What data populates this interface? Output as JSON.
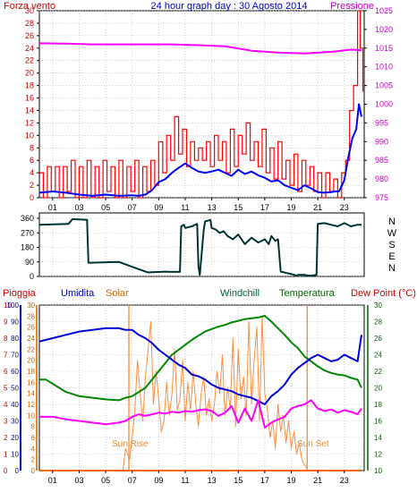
{
  "chart_data": [
    {
      "type": "line",
      "title": "24 hour graph day : 30 Agosto 2014",
      "left_axis_label": "Forza vento",
      "right_axis_label": "Pressione",
      "left_ylim": [
        0,
        30
      ],
      "left_ticks": [
        "0",
        "2",
        "4",
        "6",
        "8",
        "10",
        "12",
        "14",
        "16",
        "18",
        "20",
        "22",
        "24",
        "26",
        "28",
        "30"
      ],
      "right_ylim": [
        975,
        1025
      ],
      "right_ticks": [
        "975",
        "980",
        "985",
        "990",
        "995",
        "1000",
        "1005",
        "1010",
        "1015",
        "1020",
        "1025"
      ],
      "xlim": [
        0,
        24.5
      ],
      "x_ticks": [
        "01",
        "03",
        "05",
        "07",
        "09",
        "11",
        "13",
        "15",
        "17",
        "19",
        "21",
        "23"
      ],
      "grid": true,
      "colors": {
        "gust": "#ff0000",
        "wind": "#0000ff",
        "pressure": "#ff00ff",
        "left_axis": "#cc0000",
        "right_axis": "#cc00cc"
      },
      "series": [
        {
          "key": "pressure",
          "axis": "right",
          "x": [
            0,
            2,
            4,
            6,
            8,
            10,
            12,
            14,
            16,
            18,
            20,
            22,
            23,
            23.5,
            24,
            24.3
          ],
          "y": [
            1016.3,
            1016.2,
            1016.0,
            1016.0,
            1016.0,
            1016.0,
            1015.8,
            1015.5,
            1014.3,
            1013.8,
            1013.6,
            1014.0,
            1014.4,
            1014.6,
            1014.5,
            1014.4
          ]
        },
        {
          "key": "wind",
          "axis": "left",
          "x": [
            0,
            1,
            2,
            3,
            4,
            5,
            6,
            7,
            7.5,
            8,
            8.5,
            9,
            9.5,
            10,
            10.5,
            11,
            11.5,
            12,
            12.5,
            13,
            13.5,
            14,
            14.5,
            15,
            15.5,
            16,
            16.5,
            17,
            17.5,
            18,
            18.5,
            19,
            19.5,
            20,
            20.5,
            21,
            21.5,
            22,
            22.3,
            22.6,
            23,
            23.3,
            23.6,
            23.9,
            24.1,
            24.3
          ],
          "y": [
            0.8,
            1.0,
            0.8,
            0.5,
            0.3,
            0.5,
            0.3,
            0.4,
            0.3,
            0.5,
            1.2,
            2.5,
            3.0,
            4.0,
            4.8,
            5.5,
            4.8,
            4.2,
            4.0,
            4.2,
            4.5,
            4.0,
            3.5,
            4.5,
            3.8,
            4.2,
            3.6,
            3.2,
            2.6,
            2.8,
            2.0,
            1.6,
            1.2,
            2.0,
            1.5,
            0.9,
            0.8,
            0.9,
            1.0,
            1.0,
            2.8,
            6.5,
            9.5,
            11.0,
            15.0,
            13.0
          ]
        },
        {
          "key": "gust",
          "axis": "left",
          "x": [
            0,
            0.3,
            0.6,
            0.9,
            1.2,
            1.5,
            1.8,
            2.1,
            2.4,
            2.7,
            3.0,
            3.3,
            3.6,
            3.9,
            4.2,
            4.5,
            4.8,
            5.1,
            5.4,
            5.7,
            6.0,
            6.3,
            6.6,
            6.9,
            7.2,
            7.5,
            7.8,
            8.1,
            8.4,
            8.7,
            9.0,
            9.3,
            9.6,
            9.9,
            10.2,
            10.5,
            10.8,
            11.1,
            11.4,
            11.7,
            12.0,
            12.3,
            12.6,
            12.9,
            13.2,
            13.5,
            13.8,
            14.1,
            14.4,
            14.7,
            15.0,
            15.3,
            15.6,
            15.9,
            16.2,
            16.5,
            16.8,
            17.1,
            17.4,
            17.7,
            18.0,
            18.3,
            18.6,
            18.9,
            19.2,
            19.5,
            19.8,
            20.1,
            20.4,
            20.7,
            21.0,
            21.3,
            21.6,
            21.9,
            22.2,
            22.5,
            22.8,
            23.1,
            23.4,
            23.7,
            24.0,
            24.2,
            24.4
          ],
          "y": [
            4,
            0,
            5,
            1,
            5,
            0,
            5,
            1,
            6,
            0,
            5,
            0,
            6,
            0,
            5,
            0,
            6,
            1,
            5,
            0,
            6,
            0,
            5,
            1,
            6,
            0,
            5,
            1,
            6,
            2,
            9,
            4,
            10,
            6,
            13,
            7,
            11,
            5,
            9,
            6,
            8,
            6,
            9,
            5,
            10,
            6,
            9,
            4,
            11,
            5,
            10,
            7,
            12,
            6,
            9,
            5,
            11,
            4,
            8,
            3,
            9,
            3,
            6,
            2,
            7,
            1,
            6,
            2,
            5,
            1,
            4,
            0,
            4,
            1,
            3,
            0,
            4,
            6,
            14,
            18,
            30,
            24,
            17
          ]
        }
      ]
    },
    {
      "type": "line",
      "title": "",
      "left_ylim": [
        0,
        360
      ],
      "left_ticks": [
        "0",
        "90",
        "180",
        "270",
        "360"
      ],
      "right_labels": [
        "N",
        "W",
        "S",
        "E",
        "N"
      ],
      "xlim": [
        0,
        24.5
      ],
      "grid": true,
      "colors": {
        "line": "#003333"
      },
      "series": [
        {
          "key": "direction",
          "x": [
            0,
            2.2,
            2.5,
            3.6,
            3.7,
            6,
            8,
            8.2,
            9.5,
            9.8,
            10.6,
            10.7,
            10.9,
            11,
            11.5,
            11.9,
            12.0,
            12.1,
            12.4,
            12.5,
            12.9,
            13,
            13.3,
            13.6,
            13.9,
            14.2,
            14.6,
            15,
            15.5,
            16,
            16.5,
            17,
            17.3,
            17.5,
            17.8,
            18,
            18.2,
            19,
            19.4,
            19.5,
            20,
            20.2,
            20.5,
            20.9,
            21,
            21.5,
            22,
            22.5,
            23,
            23.5,
            24,
            24.3
          ],
          "y": [
            320,
            325,
            355,
            350,
            85,
            90,
            30,
            25,
            30,
            28,
            28,
            310,
            320,
            300,
            310,
            325,
            60,
            10,
            290,
            340,
            350,
            300,
            290,
            270,
            280,
            250,
            230,
            260,
            200,
            240,
            210,
            230,
            200,
            250,
            220,
            230,
            30,
            15,
            5,
            10,
            10,
            6,
            5,
            10,
            325,
            330,
            320,
            310,
            330,
            310,
            320,
            320
          ]
        }
      ]
    },
    {
      "type": "line",
      "title": "",
      "labels": {
        "pioggia": "Pioggia",
        "umidita": "Umidita",
        "solar": "Solar",
        "windchill": "Windchill",
        "temperatura": "Temperatura",
        "dewpoint": "Dew Point (°C)",
        "sunrise": "Sun Rise",
        "sunset": "Sun Set"
      },
      "rain_ylim": [
        0,
        10
      ],
      "rain_ticks": [
        "0",
        "1",
        "2",
        "3",
        "4",
        "5",
        "6",
        "7",
        "8",
        "9",
        "10"
      ],
      "hum_ylim": [
        0,
        100
      ],
      "hum_ticks": [
        "0",
        "10",
        "20",
        "30",
        "40",
        "50",
        "60",
        "70",
        "80",
        "90",
        "100"
      ],
      "solar_ylim": [
        0,
        30
      ],
      "solar_ticks": [
        "0",
        "2",
        "4",
        "6",
        "8",
        "10",
        "12",
        "14",
        "16",
        "18",
        "20",
        "22",
        "24",
        "26",
        "28",
        "30"
      ],
      "temp_ylim": [
        10,
        30
      ],
      "temp_ticks": [
        "10",
        "12",
        "14",
        "16",
        "18",
        "20",
        "22",
        "24",
        "26",
        "28",
        "30"
      ],
      "xlim": [
        0,
        24.5
      ],
      "x_ticks": [
        "01",
        "03",
        "05",
        "07",
        "09",
        "11",
        "13",
        "15",
        "17",
        "19",
        "21",
        "23"
      ],
      "sunrise_x": 6.75,
      "sunset_x": 20.2,
      "grid": true,
      "colors": {
        "pioggia": "#cc0000",
        "umidita": "#0000cc",
        "solar": "#cc6600",
        "windchill": "#006633",
        "temperatura": "#006600",
        "dewpoint": "#cc0000",
        "humidity_line": "#0000dd",
        "temperature_line": "#008800",
        "dewpoint_line": "#ff00ff",
        "solar_line": "#ff8c40",
        "rain_line": "#ff6a00"
      },
      "series": [
        {
          "key": "humidity",
          "axis": "hum",
          "x": [
            0,
            1,
            2,
            3,
            4,
            5,
            6,
            6.5,
            7,
            7.5,
            8,
            8.5,
            9,
            9.5,
            10,
            10.5,
            11,
            11.5,
            12,
            12.5,
            13,
            13.5,
            14,
            14.5,
            15,
            15.5,
            16,
            16.5,
            17,
            17.5,
            18,
            18.5,
            19,
            19.5,
            20,
            20.5,
            21,
            21.5,
            22,
            22.5,
            23,
            23.5,
            24,
            24.3
          ],
          "y": [
            78,
            80,
            82,
            84,
            85,
            86,
            86,
            85,
            85,
            82,
            80,
            77,
            73,
            70,
            67,
            64,
            62,
            58,
            57,
            55,
            52,
            50,
            49,
            48,
            46,
            45,
            44,
            42,
            40,
            45,
            48,
            52,
            58,
            62,
            65,
            68,
            70,
            68,
            66,
            67,
            70,
            68,
            66,
            82
          ]
        },
        {
          "key": "temperature",
          "axis": "temp",
          "x": [
            0,
            0.5,
            1,
            2,
            3,
            4,
            5,
            6,
            6.5,
            7,
            7.5,
            8,
            8.5,
            9,
            9.5,
            10,
            10.5,
            11,
            11.5,
            12,
            12.5,
            13,
            13.5,
            14,
            14.5,
            15,
            15.5,
            16,
            16.5,
            17,
            17.5,
            18,
            18.5,
            19,
            19.5,
            20,
            20.5,
            21,
            21.5,
            22,
            22.5,
            23,
            23.5,
            24,
            24.3
          ],
          "y": [
            21.0,
            21.0,
            20.5,
            19.5,
            19.0,
            18.8,
            18.6,
            18.5,
            18.8,
            19.0,
            19.5,
            20.0,
            21.0,
            22.0,
            23.0,
            24.0,
            24.6,
            25.2,
            25.8,
            26.3,
            26.8,
            27.1,
            27.4,
            27.6,
            27.9,
            28.1,
            28.3,
            28.4,
            28.5,
            28.7,
            28.0,
            27.2,
            26.4,
            25.5,
            24.8,
            23.8,
            23.2,
            22.6,
            22.1,
            21.8,
            21.6,
            21.5,
            21.2,
            21.0,
            20.0
          ]
        },
        {
          "key": "dewpoint",
          "axis": "temp",
          "x": [
            0,
            1,
            2,
            3,
            4,
            5,
            6,
            6.5,
            7,
            7.5,
            8,
            8.5,
            9,
            9.5,
            10,
            10.5,
            11,
            11.5,
            12,
            12.5,
            13,
            13.5,
            14,
            14.5,
            15,
            15.5,
            16,
            16.5,
            17,
            17.5,
            18,
            18.5,
            19,
            19.5,
            20,
            20.5,
            21,
            21.5,
            22,
            22.5,
            23,
            23.5,
            24,
            24.3
          ],
          "y": [
            16.5,
            16.5,
            16.2,
            16.0,
            15.8,
            15.6,
            15.8,
            16.0,
            16.5,
            16.8,
            16.6,
            16.8,
            17.0,
            16.9,
            17.1,
            17.0,
            17.2,
            17.1,
            17.3,
            17.4,
            17.2,
            16.6,
            17.0,
            17.8,
            15.8,
            17.5,
            16.0,
            18.5,
            15.2,
            15.8,
            16.2,
            16.5,
            17.5,
            17.8,
            18.0,
            18.5,
            17.5,
            17.2,
            17.4,
            17.0,
            17.3,
            17.1,
            16.8,
            17.5
          ]
        },
        {
          "key": "solar",
          "axis": "solar",
          "x": [
            6.3,
            6.5,
            6.8,
            7.0,
            7.2,
            7.4,
            7.6,
            7.8,
            8.0,
            8.2,
            8.4,
            8.6,
            8.8,
            9.0,
            9.2,
            9.4,
            9.6,
            9.8,
            10.0,
            10.2,
            10.4,
            10.6,
            10.8,
            11.0,
            11.2,
            11.4,
            11.6,
            11.8,
            12.0,
            12.2,
            12.4,
            12.6,
            12.8,
            13.0,
            13.2,
            13.4,
            13.6,
            13.8,
            14.0,
            14.2,
            14.4,
            14.6,
            14.8,
            15.0,
            15.2,
            15.4,
            15.6,
            15.8,
            16.0,
            16.2,
            16.4,
            16.6,
            16.8,
            17.0,
            17.2,
            17.4,
            17.6,
            17.8,
            18.0,
            18.2,
            18.4,
            18.6,
            18.8,
            19.0,
            19.2,
            19.4,
            19.6,
            19.8,
            20.0,
            20.3
          ],
          "y": [
            0,
            4,
            2,
            6,
            11,
            20,
            14,
            9,
            17,
            22,
            27,
            12,
            18,
            13,
            7,
            9,
            16,
            10,
            14,
            22,
            11,
            13,
            20,
            9,
            16,
            11,
            18,
            12,
            8,
            14,
            17,
            10,
            13,
            9,
            12,
            18,
            14,
            21,
            10,
            15,
            11,
            24,
            8,
            22,
            13,
            17,
            10,
            27,
            12,
            20,
            26,
            9,
            28,
            14,
            11,
            6,
            9,
            4,
            12,
            7,
            10,
            5,
            9,
            4,
            7,
            3,
            5,
            2,
            1,
            0
          ]
        },
        {
          "key": "rain",
          "axis": "rain",
          "x": [
            0,
            24.3
          ],
          "y": [
            0,
            0
          ]
        }
      ]
    }
  ]
}
